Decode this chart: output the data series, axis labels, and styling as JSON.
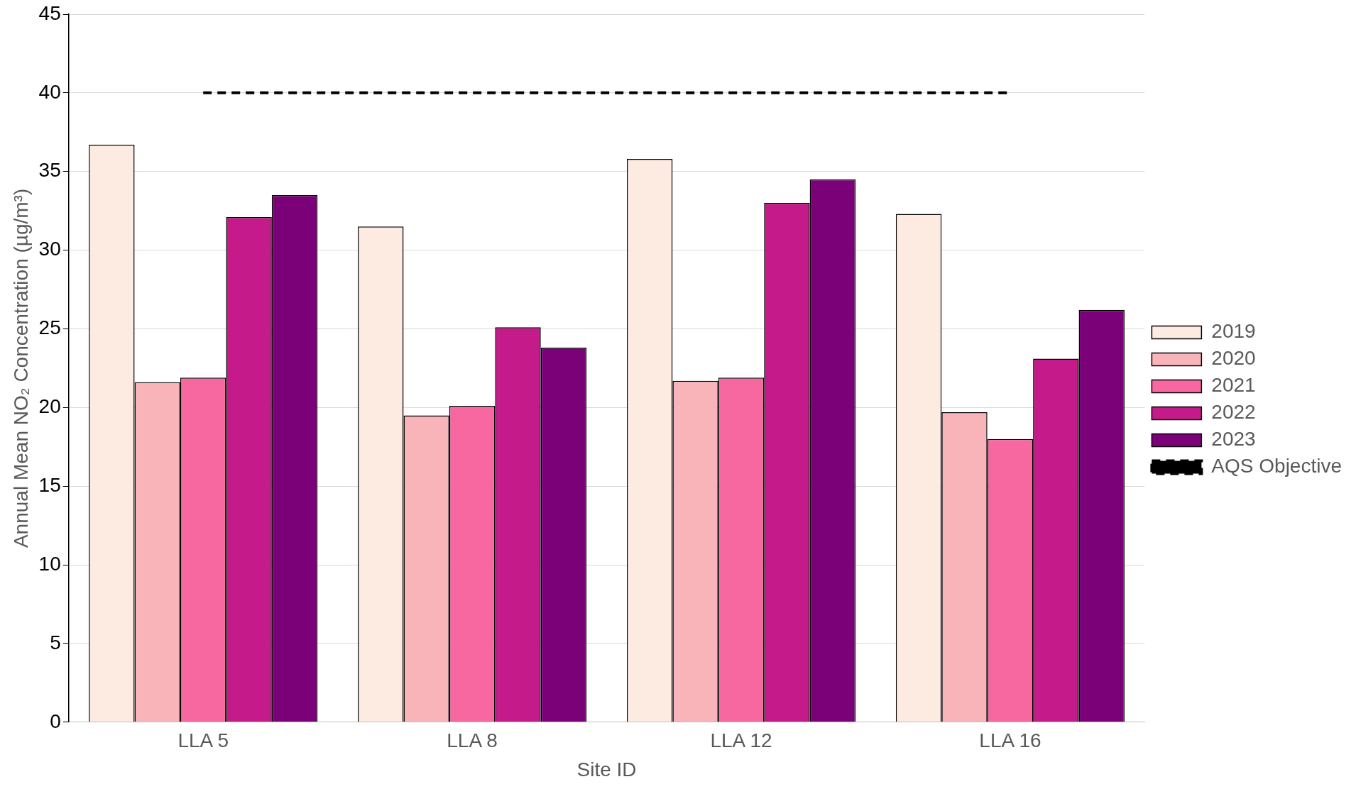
{
  "chart_data": {
    "type": "bar",
    "xlabel": "Site ID",
    "ylabel": "Annual Mean NO₂ Concentration (µg/m³)",
    "categories": [
      "LLA 5",
      "LLA 8",
      "LLA 12",
      "LLA 16"
    ],
    "series": [
      {
        "name": "2019",
        "color": "#fdeae1",
        "values": [
          36.7,
          31.5,
          35.8,
          32.3
        ]
      },
      {
        "name": "2020",
        "color": "#f9b4b9",
        "values": [
          21.6,
          19.5,
          21.7,
          19.7
        ]
      },
      {
        "name": "2021",
        "color": "#f768a1",
        "values": [
          21.9,
          20.1,
          21.9,
          18.0
        ]
      },
      {
        "name": "2022",
        "color": "#c51b8a",
        "values": [
          32.1,
          25.1,
          33.0,
          23.1
        ]
      },
      {
        "name": "2023",
        "color": "#7a0177",
        "values": [
          33.5,
          23.8,
          34.5,
          26.2
        ]
      }
    ],
    "ref_lines": [
      {
        "axis": "y",
        "value": 40,
        "label": "AQS Objective",
        "color": "#000000",
        "line_style": "dashed"
      }
    ],
    "ylim": [
      0,
      45
    ],
    "yticks": [
      0,
      5,
      10,
      15,
      20,
      25,
      30,
      35,
      40,
      45
    ],
    "grid": "y",
    "legend": "right"
  }
}
